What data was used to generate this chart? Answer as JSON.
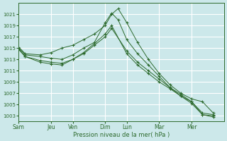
{
  "xlabel": "Pression niveau de la mer( hPa )",
  "bg_color": "#cce8ea",
  "grid_color": "#ffffff",
  "line_color": "#2d6a2d",
  "ylim": [
    1002,
    1023
  ],
  "yticks": [
    1003,
    1005,
    1007,
    1009,
    1011,
    1013,
    1015,
    1017,
    1019,
    1021
  ],
  "xtick_labels": [
    "Sam",
    "Jeu",
    "Ven",
    "Dim",
    "Lun",
    "Mar",
    "Mer"
  ],
  "lines": [
    {
      "x": [
        0,
        0.3,
        1.0,
        1.5,
        2.0,
        2.5,
        3.0,
        3.5,
        4.0,
        4.3,
        4.6,
        5.0,
        5.5,
        6.0,
        6.5,
        7.0,
        7.5,
        8.0,
        8.5,
        9.0
      ],
      "y": [
        1015.2,
        1014.0,
        1013.8,
        1014.2,
        1015.0,
        1015.5,
        1016.5,
        1017.5,
        1019.0,
        1021.0,
        1022.0,
        1019.5,
        1016.0,
        1013.0,
        1010.5,
        1008.5,
        1007.0,
        1006.0,
        1005.5,
        1003.5
      ]
    },
    {
      "x": [
        0,
        0.3,
        1.0,
        1.5,
        2.0,
        2.5,
        3.0,
        3.5,
        4.0,
        4.3,
        4.6,
        5.0,
        5.5,
        6.0,
        6.5,
        7.0,
        7.5,
        8.0,
        8.5,
        9.0
      ],
      "y": [
        1015.0,
        1013.8,
        1013.5,
        1013.2,
        1013.0,
        1013.8,
        1015.0,
        1016.0,
        1019.5,
        1021.2,
        1020.0,
        1016.5,
        1014.0,
        1012.0,
        1010.0,
        1008.0,
        1006.5,
        1005.5,
        1003.2,
        1003.0
      ]
    },
    {
      "x": [
        0,
        0.3,
        1.0,
        1.5,
        2.0,
        2.5,
        3.0,
        3.5,
        4.0,
        4.3,
        5.0,
        5.5,
        6.0,
        6.5,
        7.0,
        7.5,
        8.0,
        8.5,
        9.0
      ],
      "y": [
        1014.8,
        1013.5,
        1012.8,
        1012.5,
        1012.3,
        1013.0,
        1014.0,
        1015.5,
        1017.0,
        1018.5,
        1014.5,
        1012.5,
        1011.0,
        1009.5,
        1008.0,
        1006.8,
        1005.5,
        1003.5,
        1003.2
      ]
    },
    {
      "x": [
        0,
        0.3,
        1.0,
        1.5,
        2.0,
        2.5,
        3.0,
        3.5,
        4.0,
        4.3,
        5.0,
        5.5,
        6.0,
        6.5,
        7.0,
        7.5,
        8.0,
        8.5,
        9.0
      ],
      "y": [
        1014.8,
        1013.5,
        1012.5,
        1012.2,
        1012.0,
        1013.0,
        1014.2,
        1015.8,
        1017.5,
        1019.0,
        1014.0,
        1012.0,
        1010.5,
        1009.0,
        1007.8,
        1006.5,
        1005.2,
        1003.2,
        1002.8
      ]
    }
  ],
  "xtick_x": [
    0,
    1.5,
    2.5,
    4.0,
    5.0,
    6.5,
    8.0
  ],
  "xlim": [
    0,
    9.5
  ]
}
